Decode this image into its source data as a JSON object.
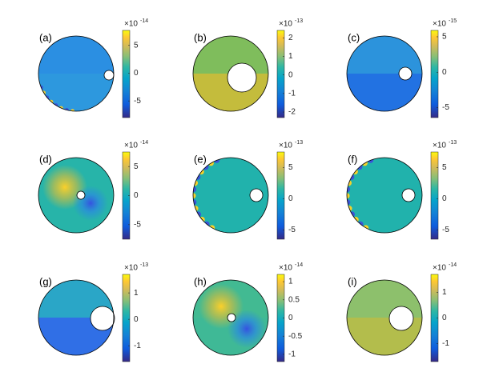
{
  "chart_data": [
    {
      "type": "field",
      "label": "(a)",
      "scale": {
        "base": "×10",
        "exponent": "-14"
      },
      "clim": [
        -8,
        7.7
      ],
      "cticks": [
        -5,
        0,
        5
      ]
    },
    {
      "type": "field",
      "label": "(b)",
      "scale": {
        "base": "×10",
        "exponent": "-13"
      },
      "clim": [
        -2.3,
        2.4
      ],
      "cticks": [
        -2,
        -1,
        0,
        1,
        2
      ]
    },
    {
      "type": "field",
      "label": "(c)",
      "scale": {
        "base": "×10",
        "exponent": "-15"
      },
      "clim": [
        -6.4,
        5.9
      ],
      "cticks": [
        -5,
        0,
        5
      ]
    },
    {
      "type": "field",
      "label": "(d)",
      "scale": {
        "base": "×10",
        "exponent": "-14"
      },
      "clim": [
        -7.5,
        7.5
      ],
      "cticks": [
        -5,
        0,
        5
      ]
    },
    {
      "type": "field",
      "label": "(e)",
      "scale": {
        "base": "×10",
        "exponent": "-13"
      },
      "clim": [
        -6.5,
        7.5
      ],
      "cticks": [
        -5,
        0,
        5
      ]
    },
    {
      "type": "field",
      "label": "(f)",
      "scale": {
        "base": "×10",
        "exponent": "-13"
      },
      "clim": [
        -6.5,
        7.5
      ],
      "cticks": [
        -5,
        0,
        5
      ]
    },
    {
      "type": "field",
      "label": "(g)",
      "scale": {
        "base": "×10",
        "exponent": "-13"
      },
      "clim": [
        -1.6,
        1.7
      ],
      "cticks": [
        -1,
        0,
        1
      ]
    },
    {
      "type": "field",
      "label": "(h)",
      "scale": {
        "base": "×10",
        "exponent": "-14"
      },
      "clim": [
        -1.2,
        1.2
      ],
      "cticks": [
        -1,
        -0.5,
        0,
        0.5,
        1
      ]
    },
    {
      "type": "field",
      "label": "(i)",
      "scale": {
        "base": "×10",
        "exponent": "-14"
      },
      "clim": [
        -1.7,
        1.7
      ],
      "cticks": [
        -1,
        0,
        1
      ]
    }
  ]
}
